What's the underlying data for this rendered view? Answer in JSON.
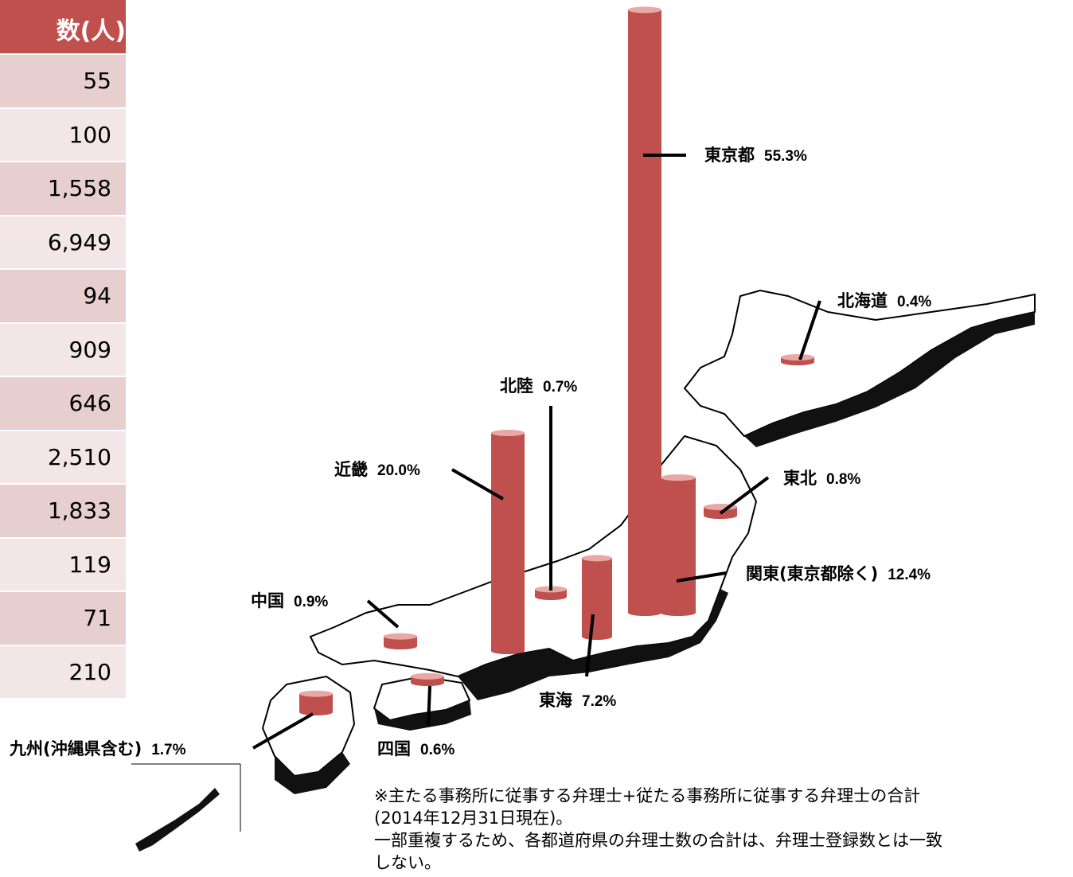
{
  "table": {
    "header": "数(人)",
    "values": [
      "55",
      "100",
      "1,558",
      "6,949",
      "94",
      "909",
      "646",
      "2,510",
      "1,833",
      "119",
      "71",
      "210"
    ]
  },
  "chart_data": {
    "type": "bar",
    "categories": [
      "東京都",
      "北海道",
      "北陸",
      "近畿",
      "東北",
      "関東(東京都除く)",
      "中国",
      "東海",
      "四国",
      "九州(沖縄県含む)"
    ],
    "values": [
      55.3,
      0.4,
      0.7,
      20.0,
      0.8,
      12.4,
      0.9,
      7.2,
      0.6,
      1.7
    ],
    "value_labels": [
      "55.3%",
      "0.4%",
      "0.7%",
      "20.0%",
      "0.8%",
      "12.4%",
      "0.9%",
      "7.2%",
      "0.6%",
      "1.7%"
    ],
    "unit": "%",
    "color": "#c0504d"
  },
  "note": {
    "line1": "※主たる事務所に従事する弁理士+従たる事務所に従事する弁理士の合計",
    "line2": "(2014年12月31日現在)。",
    "line3": "一部重複するため、各都道府県の弁理士数の合計は、弁理士登録数とは一致",
    "line4": "しない。"
  }
}
